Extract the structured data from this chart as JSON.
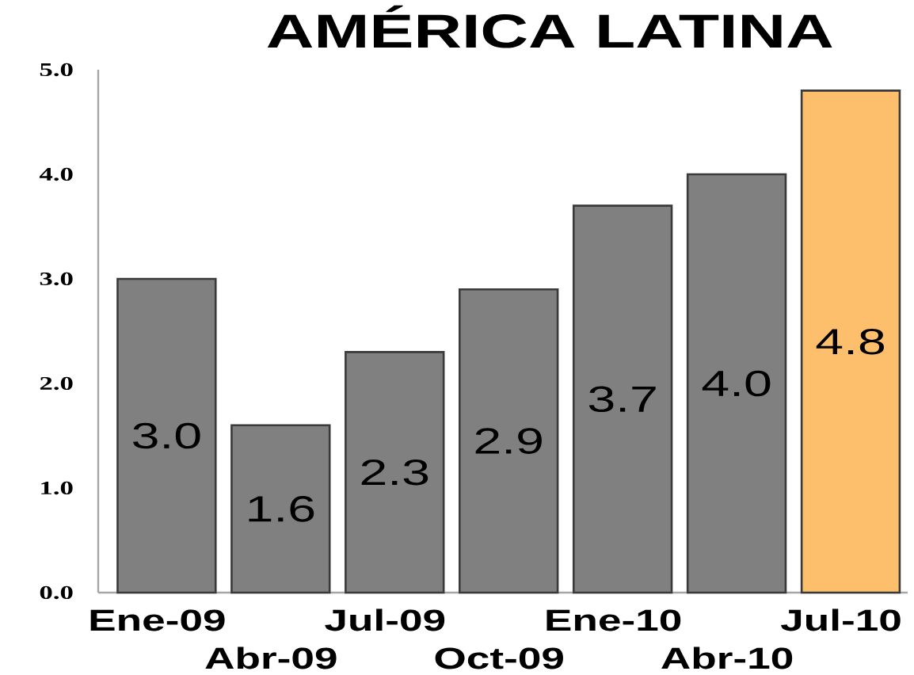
{
  "chart_data": {
    "type": "bar",
    "title": "AMÉRICA LATINA",
    "categories": [
      "Ene-09",
      "Abr-09",
      "Jul-09",
      "Oct-09",
      "Ene-10",
      "Abr-10",
      "Jul-10"
    ],
    "values": [
      3.0,
      1.6,
      2.3,
      2.9,
      3.7,
      4.0,
      4.8
    ],
    "value_labels": [
      "3.0",
      "1.6",
      "2.3",
      "2.9",
      "3.7",
      "4.0",
      "4.8"
    ],
    "colors": [
      "#808080",
      "#808080",
      "#808080",
      "#808080",
      "#808080",
      "#808080",
      "#fdbf6b"
    ],
    "ylim": [
      0,
      5
    ],
    "yticks": [
      {
        "value": 0,
        "label": "0.0"
      },
      {
        "value": 1,
        "label": "1.0"
      },
      {
        "value": 2,
        "label": "2.0"
      },
      {
        "value": 3,
        "label": "3.0"
      },
      {
        "value": 4,
        "label": "4.0"
      },
      {
        "value": 5,
        "label": "5.0"
      }
    ]
  }
}
